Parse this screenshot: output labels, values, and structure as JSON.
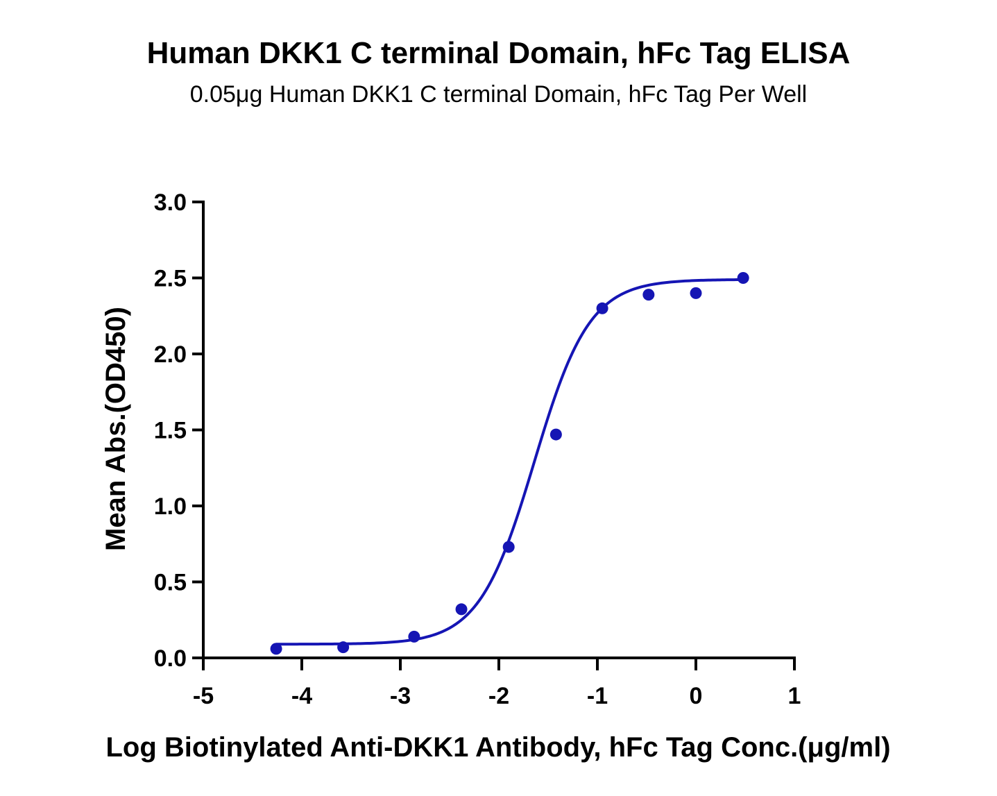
{
  "chart_data": {
    "type": "scatter",
    "title": "Human DKK1 C terminal Domain, hFc Tag ELISA",
    "subtitle": "0.05μg Human DKK1 C terminal Domain, hFc Tag Per Well",
    "xlabel": "Log Biotinylated Anti-DKK1 Antibody, hFc Tag Conc.(μg/ml)",
    "ylabel": "Mean Abs.(OD450)",
    "xlim": [
      -5,
      1
    ],
    "ylim": [
      0,
      3.0
    ],
    "x_ticks": [
      "-5",
      "-4",
      "-3",
      "-2",
      "-1",
      "0",
      "1"
    ],
    "y_ticks": [
      "0.0",
      "0.5",
      "1.0",
      "1.5",
      "2.0",
      "2.5",
      "3.0"
    ],
    "grid": false,
    "series": [
      {
        "points": [
          {
            "x": -4.26,
            "y": 0.06
          },
          {
            "x": -3.58,
            "y": 0.07
          },
          {
            "x": -2.86,
            "y": 0.14
          },
          {
            "x": -2.38,
            "y": 0.32
          },
          {
            "x": -1.9,
            "y": 0.73
          },
          {
            "x": -1.42,
            "y": 1.47
          },
          {
            "x": -0.95,
            "y": 2.3
          },
          {
            "x": -0.48,
            "y": 2.39
          },
          {
            "x": 0.0,
            "y": 2.4
          },
          {
            "x": 0.48,
            "y": 2.5
          }
        ],
        "fit": {
          "bottom": 0.09,
          "top": 2.49,
          "log_ec50": -1.64,
          "hill_slope": 1.55
        },
        "color": "#1515b4"
      }
    ]
  }
}
